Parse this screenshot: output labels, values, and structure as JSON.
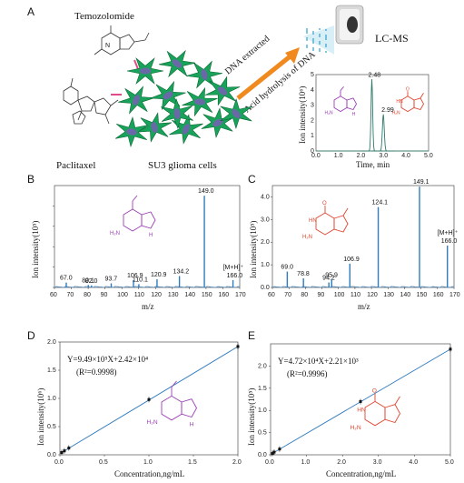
{
  "panel_letters": {
    "a": "A",
    "b": "B",
    "c": "C",
    "d": "D",
    "e": "E"
  },
  "panel_a": {
    "drug1": "Temozolomide",
    "drug2": "Paclitaxel",
    "cells": "SU3 glioma cells",
    "arrow_top": "DNA  extracted",
    "arrow_bottom": "Acid hydrolysis of DNA",
    "instrument": "LC-MS",
    "inset_ylabel": "Ion intensity(10⁶)",
    "inset_xlabel": "Time, min",
    "peak1_label": "2.48",
    "peak2_label": "2.99",
    "inset_yticks": [
      "0",
      "1",
      "2",
      "3",
      "4",
      "5"
    ],
    "inset_xticks": [
      "0.0",
      "1.0",
      "2.0",
      "3.0",
      "4.0",
      "5.0"
    ],
    "purple_color": "#9b3fb5",
    "red_color": "#e0452f"
  },
  "chart_data": [
    {
      "type": "bar",
      "panel": "B",
      "xlabel": "m/z",
      "ylabel": "Ion intensity(10⁵)",
      "xlim": [
        60,
        170
      ],
      "ylim": [
        0,
        2.5
      ],
      "xticks": [
        60,
        70,
        80,
        90,
        100,
        110,
        120,
        130,
        140,
        150,
        160,
        170
      ],
      "peaks": [
        {
          "mz": 67.0,
          "i": 0.12,
          "label": "67.0"
        },
        {
          "mz": 80.1,
          "i": 0.06,
          "label": "80.1"
        },
        {
          "mz": 82.0,
          "i": 0.05,
          "label": "82.0"
        },
        {
          "mz": 93.7,
          "i": 0.1,
          "label": "93.7"
        },
        {
          "mz": 106.9,
          "i": 0.18,
          "label": "106.9"
        },
        {
          "mz": 110.1,
          "i": 0.08,
          "label": "110.1"
        },
        {
          "mz": 120.9,
          "i": 0.2,
          "label": "120.9"
        },
        {
          "mz": 134.2,
          "i": 0.28,
          "label": "134.2"
        },
        {
          "mz": 149.0,
          "i": 2.25,
          "label": "149.0"
        },
        {
          "mz": 166.0,
          "i": 0.18,
          "label": "166.0"
        }
      ],
      "ion_label": "[M+H]⁺"
    },
    {
      "type": "bar",
      "panel": "C",
      "xlabel": "m/z",
      "ylabel": "Ion intensity(10⁵)",
      "xlim": [
        60,
        170
      ],
      "ylim": [
        0,
        4.5
      ],
      "yticks": [
        "0.0",
        "1.0",
        "2.0",
        "3.0",
        "4.0"
      ],
      "xticks": [
        60,
        70,
        80,
        90,
        100,
        110,
        120,
        130,
        140,
        150,
        160,
        170
      ],
      "peaks": [
        {
          "mz": 69.0,
          "i": 0.7,
          "label": "69.0"
        },
        {
          "mz": 78.8,
          "i": 0.4,
          "label": "78.8"
        },
        {
          "mz": 94.2,
          "i": 0.22,
          "label": "94.2"
        },
        {
          "mz": 95.9,
          "i": 0.35,
          "label": "95.9"
        },
        {
          "mz": 106.9,
          "i": 1.05,
          "label": "106.9"
        },
        {
          "mz": 124.1,
          "i": 3.55,
          "label": "124.1"
        },
        {
          "mz": 149.1,
          "i": 4.45,
          "label": "149.1"
        },
        {
          "mz": 166.0,
          "i": 1.85,
          "label": "166.0"
        }
      ],
      "ion_label": "[M+H]⁺"
    },
    {
      "type": "line",
      "panel": "D",
      "xlabel": "Concentration,ng/mL",
      "ylabel": "Ion intensity(10⁶)",
      "xlim": [
        0,
        2.0
      ],
      "ylim": [
        0,
        2.0
      ],
      "xticks": [
        "0.0",
        "0.5",
        "1.0",
        "1.5",
        "2.0"
      ],
      "yticks": [
        "0.0",
        "0.5",
        "1.0",
        "1.5",
        "2.0"
      ],
      "x": [
        0.02,
        0.05,
        0.1,
        1.0,
        2.0
      ],
      "y": [
        0.04,
        0.07,
        0.12,
        0.98,
        1.92
      ],
      "equation": "Y=9.49×10⁵X+2.42×10⁴",
      "r2": "(R²=0.9998)"
    },
    {
      "type": "line",
      "panel": "E",
      "xlabel": "Concentration,ng/mL",
      "ylabel": "Ion intensity(10⁵)",
      "xlim": [
        0,
        5.0
      ],
      "ylim": [
        0,
        2.5
      ],
      "xticks": [
        "0.0",
        "1.0",
        "2.0",
        "3.0",
        "4.0",
        "5.0"
      ],
      "yticks": [
        "0.0",
        "0.5",
        "1.0",
        "1.5",
        "2.0"
      ],
      "x": [
        0.05,
        0.1,
        0.25,
        2.5,
        5.0
      ],
      "y": [
        0.03,
        0.06,
        0.13,
        1.2,
        2.38
      ],
      "equation": "Y=4.72×10⁴X+2.21×10³",
      "r2": "(R²=0.9996)"
    }
  ]
}
